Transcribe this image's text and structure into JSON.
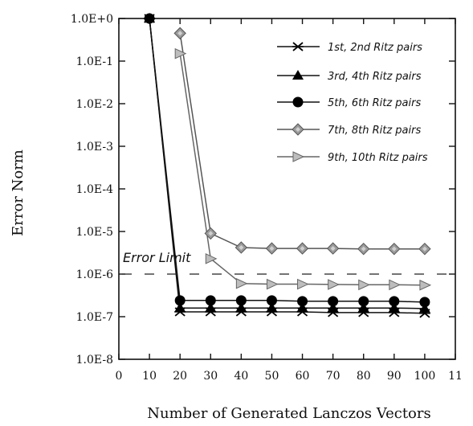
{
  "chart_data": {
    "type": "line",
    "title": "",
    "xlabel": "Number of Generated Lanczos Vectors",
    "ylabel": "Error Norm",
    "xlim": [
      0,
      110
    ],
    "ylim": [
      1e-08,
      1
    ],
    "y_scale": "log",
    "x_tick_labels": [
      "0",
      "10",
      "20",
      "30",
      "40",
      "50",
      "60",
      "70",
      "80",
      "90",
      "100",
      "11"
    ],
    "y_tick_labels": [
      "1.0E+0",
      "1.0E-1",
      "1.0E-2",
      "1.0E-3",
      "1.0E-4",
      "1.0E-5",
      "1.0E-6",
      "1.0E-7",
      "1.0E-8"
    ],
    "legend_position": "top-right",
    "grid": false,
    "annotation": {
      "text": "Error Limit",
      "value": 1e-06
    },
    "series": [
      {
        "name": "1st, 2nd Ritz pairs",
        "marker": "asterisk",
        "x": [
          10,
          20,
          30,
          40,
          50,
          60,
          70,
          80,
          90,
          100
        ],
        "y": [
          1.0,
          1.3e-07,
          1.3e-07,
          1.3e-07,
          1.3e-07,
          1.3e-07,
          1.25e-07,
          1.25e-07,
          1.25e-07,
          1.2e-07
        ]
      },
      {
        "name": "3rd, 4th Ritz pairs",
        "marker": "triangle",
        "x": [
          10,
          20,
          30,
          40,
          50,
          60,
          70,
          80,
          90,
          100
        ],
        "y": [
          1.0,
          1.6e-07,
          1.6e-07,
          1.6e-07,
          1.6e-07,
          1.6e-07,
          1.6e-07,
          1.6e-07,
          1.6e-07,
          1.55e-07
        ]
      },
      {
        "name": "5th, 6th Ritz pairs",
        "marker": "circle",
        "x": [
          10,
          20,
          30,
          40,
          50,
          60,
          70,
          80,
          90,
          100
        ],
        "y": [
          1.0,
          2.4e-07,
          2.4e-07,
          2.4e-07,
          2.4e-07,
          2.3e-07,
          2.3e-07,
          2.3e-07,
          2.3e-07,
          2.2e-07
        ]
      },
      {
        "name": "7th, 8th Ritz pairs",
        "marker": "diamond",
        "x": [
          20,
          30,
          40,
          50,
          60,
          70,
          80,
          90,
          100
        ],
        "y": [
          0.45,
          9e-06,
          4.2e-06,
          4e-06,
          4e-06,
          4e-06,
          3.9e-06,
          3.9e-06,
          3.9e-06
        ]
      },
      {
        "name": "9th, 10th Ritz pairs",
        "marker": "triangle-right",
        "x": [
          20,
          30,
          40,
          50,
          60,
          70,
          80,
          90,
          100
        ],
        "y": [
          0.15,
          2.3e-06,
          6e-07,
          5.8e-07,
          5.8e-07,
          5.7e-07,
          5.6e-07,
          5.6e-07,
          5.5e-07
        ]
      }
    ]
  }
}
